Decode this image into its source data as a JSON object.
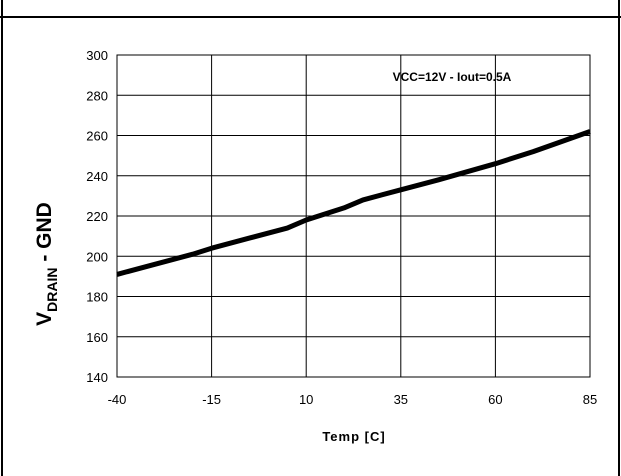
{
  "chart_data": {
    "type": "line",
    "title": "",
    "xlabel": "Temp [C]",
    "ylabel_main": "V",
    "ylabel_sub": "DRAIN",
    "ylabel_suffix": " - GND",
    "annotation": "VCC=12V - Iout=0.5A",
    "xlim": [
      -40,
      85
    ],
    "ylim": [
      140,
      300
    ],
    "x_ticks": [
      -40,
      -15,
      10,
      35,
      60,
      85
    ],
    "y_ticks": [
      140,
      160,
      180,
      200,
      220,
      240,
      260,
      280,
      300
    ],
    "grid": true,
    "series": [
      {
        "x": [
          -40,
          -30,
          -20,
          -15,
          -5,
          5,
          10,
          20,
          25,
          35,
          45,
          60,
          70,
          85
        ],
        "y": [
          191,
          196,
          201,
          204,
          209,
          214,
          218,
          224,
          228,
          233,
          238,
          246,
          252,
          262
        ],
        "color": "#000000"
      }
    ]
  }
}
